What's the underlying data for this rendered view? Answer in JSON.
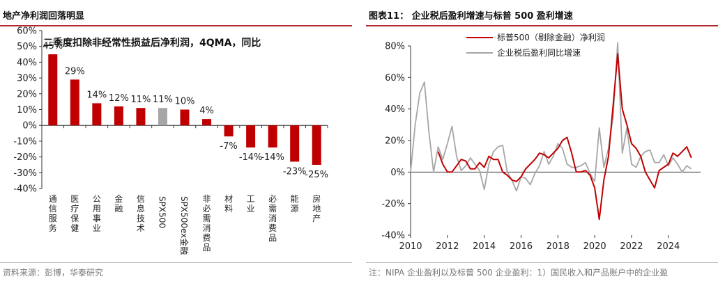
{
  "left_panel": {
    "title": "地产净利润回落明显",
    "source": "资料来源：彭博，华泰研究"
  },
  "right_panel": {
    "title": "图表11：  企业税后盈利增速与标普 500 盈利增速",
    "note": "注：NIPA 企业盈利以及标普 500 企业盈利：1）国民收入和产品账户中的企业盈"
  },
  "colors": {
    "red": "#c00000",
    "gray": "#a6a6a6",
    "rule": "#b0272e"
  },
  "chart_data": [
    {
      "type": "bar",
      "title": "二季度扣除非经常性损益后净利润，4QMA，同比",
      "categories": [
        "通信服务",
        "医疗保健",
        "公用事业",
        "金融",
        "信息技术",
        "SPX500",
        "SPX500ex金融",
        "非必需消费品",
        "材料",
        "工业",
        "必需消费品",
        "能源",
        "房地产"
      ],
      "values": [
        45,
        29,
        14,
        12,
        11,
        11,
        10,
        4,
        -7,
        -14,
        -14,
        -23,
        -25
      ],
      "data_labels": [
        "45%",
        "29%",
        "14%",
        "12%",
        "11%",
        "11%",
        "10%",
        "4%",
        "-7%",
        "-14%",
        "-14%",
        "-23%",
        "-25%"
      ],
      "highlight_index": 5,
      "yticks": [
        "60%",
        "50%",
        "40%",
        "30%",
        "20%",
        "10%",
        "0%",
        "-10%",
        "-20%",
        "-30%",
        "-40%"
      ],
      "ylim": [
        -40,
        60
      ]
    },
    {
      "type": "line",
      "title": "企业税后盈利增速与标普 500 盈利增速",
      "xticks": [
        "2010",
        "2012",
        "2014",
        "2016",
        "2018",
        "2020",
        "2022",
        "2024"
      ],
      "yticks": [
        "80%",
        "60%",
        "40%",
        "20%",
        "0%",
        "-20%",
        "-40%"
      ],
      "xlim": [
        2010,
        2025.75
      ],
      "ylim": [
        -40,
        80
      ],
      "series": [
        {
          "name": "标普500（剔除金融）净利润",
          "color": "#c00000",
          "x": [
            2011.5,
            2011.75,
            2012,
            2012.25,
            2012.5,
            2012.75,
            2013,
            2013.25,
            2013.5,
            2013.75,
            2014,
            2014.25,
            2014.5,
            2014.75,
            2015,
            2015.25,
            2015.5,
            2015.75,
            2016,
            2016.25,
            2016.5,
            2016.75,
            2017,
            2017.25,
            2017.5,
            2017.75,
            2018,
            2018.25,
            2018.5,
            2018.75,
            2019,
            2019.25,
            2019.5,
            2019.75,
            2020,
            2020.25,
            2020.5,
            2020.75,
            2021,
            2021.25,
            2021.5,
            2021.75,
            2022,
            2022.25,
            2022.5,
            2022.75,
            2023,
            2023.25,
            2023.5,
            2023.75,
            2024,
            2024.25,
            2024.5,
            2024.75,
            2025,
            2025.25
          ],
          "y": [
            13,
            5,
            0,
            0,
            4,
            8,
            7,
            2,
            2,
            6,
            3,
            10,
            8,
            8,
            0,
            -2,
            -5,
            -6,
            -3,
            2,
            5,
            8,
            12,
            11,
            9,
            12,
            15,
            20,
            22,
            12,
            0,
            0,
            1,
            -2,
            -10,
            -30,
            -5,
            10,
            42,
            75,
            40,
            30,
            18,
            15,
            10,
            0,
            -5,
            -10,
            1,
            3,
            5,
            12,
            10,
            13,
            16,
            9
          ]
        },
        {
          "name": "企业税后盈利同比增速",
          "color": "#a6a6a6",
          "x": [
            2010,
            2010.25,
            2010.5,
            2010.75,
            2011,
            2011.25,
            2011.5,
            2011.75,
            2012,
            2012.25,
            2012.5,
            2012.75,
            2013,
            2013.25,
            2013.5,
            2013.75,
            2014,
            2014.25,
            2014.5,
            2014.75,
            2015,
            2015.25,
            2015.5,
            2015.75,
            2016,
            2016.25,
            2016.5,
            2016.75,
            2017,
            2017.25,
            2017.5,
            2017.75,
            2018,
            2018.25,
            2018.5,
            2018.75,
            2019,
            2019.25,
            2019.5,
            2019.75,
            2020,
            2020.25,
            2020.5,
            2020.75,
            2021,
            2021.25,
            2021.5,
            2021.75,
            2022,
            2022.25,
            2022.5,
            2022.75,
            2023,
            2023.25,
            2023.5,
            2023.75,
            2024,
            2024.25,
            2024.5,
            2024.75,
            2025,
            2025.25
          ],
          "y": [
            0,
            30,
            50,
            57,
            25,
            0,
            16,
            8,
            18,
            29,
            10,
            1,
            4,
            9,
            5,
            1,
            -11,
            5,
            13,
            16,
            17,
            0,
            -5,
            -12,
            -3,
            -4,
            -8,
            -1,
            4,
            13,
            5,
            10,
            18,
            15,
            5,
            3,
            3,
            4,
            6,
            -1,
            -6,
            28,
            3,
            15,
            35,
            82,
            12,
            28,
            5,
            3,
            10,
            13,
            14,
            6,
            6,
            11,
            4,
            9,
            5,
            0,
            4,
            2
          ]
        }
      ]
    }
  ]
}
